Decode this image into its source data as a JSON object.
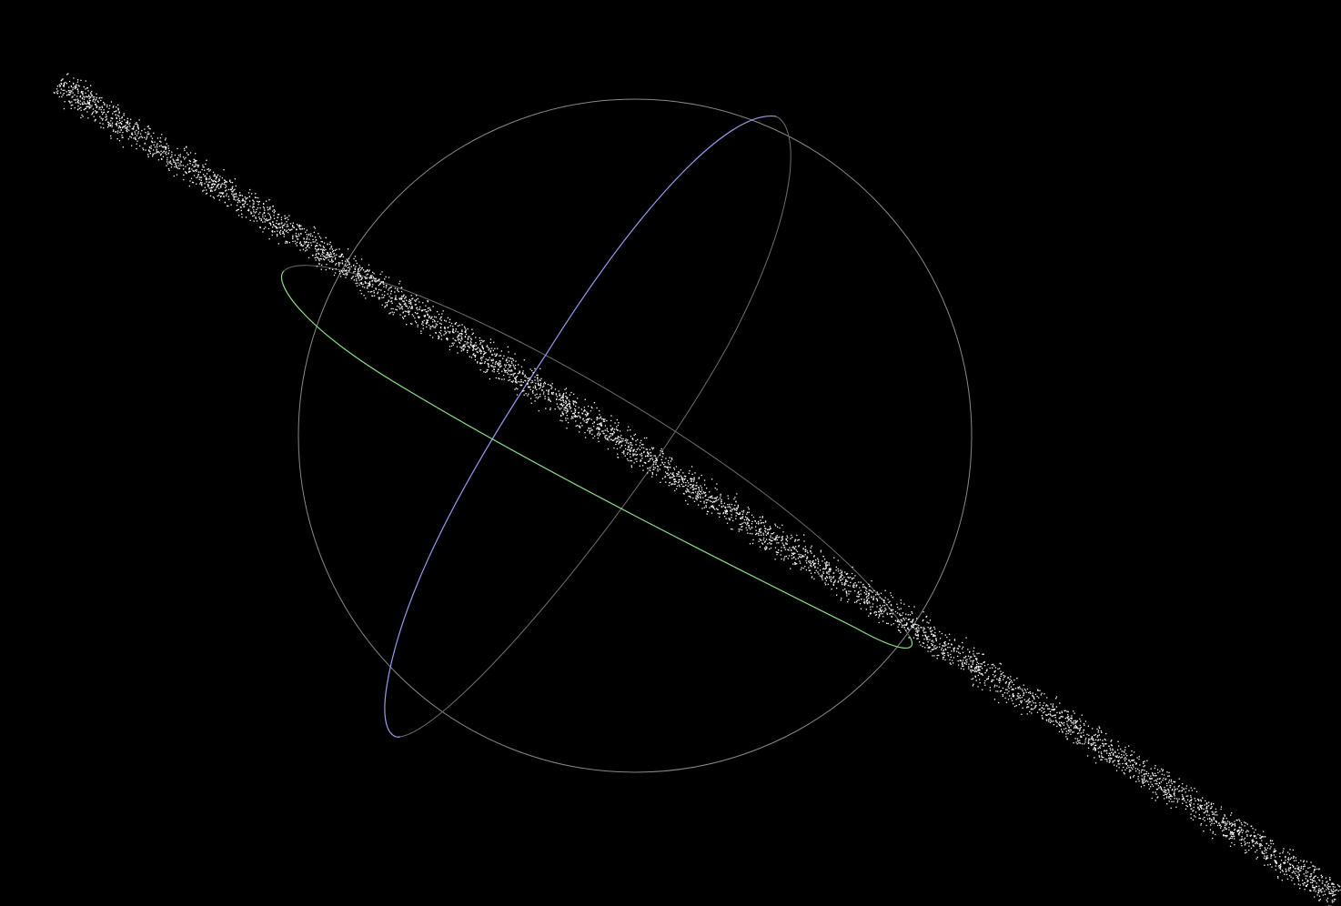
{
  "background_color": "#000000",
  "gizmo": {
    "sphere_outline": {
      "color": "#8a8a8a",
      "icon": "circle-outline"
    },
    "ring_back_arcs": {
      "color": "#6e6e6e"
    },
    "ring_x": {
      "color": "#9a9aee",
      "icon": "rotation-ring-x"
    },
    "ring_y": {
      "color": "#8ae08a",
      "icon": "rotation-ring-y"
    }
  },
  "point_cloud": {
    "color": "#ffffff",
    "shape": "linear-band",
    "icon": "particle-stream"
  }
}
